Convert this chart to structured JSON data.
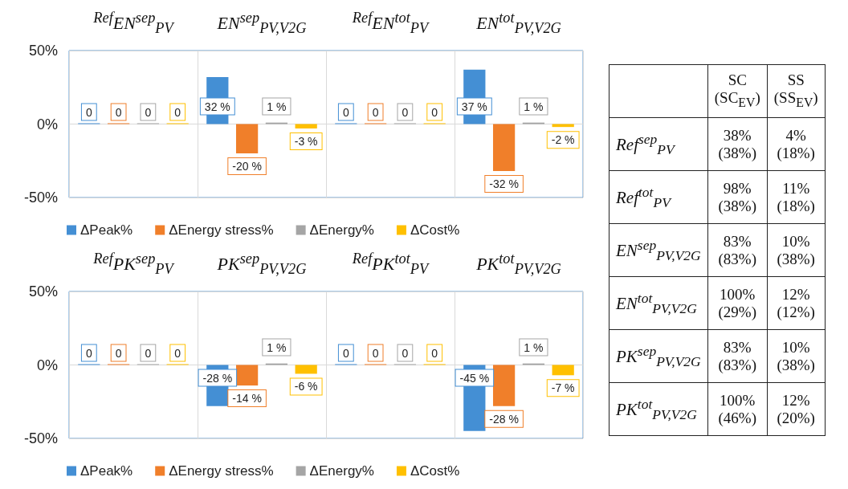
{
  "chart_data": [
    {
      "type": "bar",
      "categories": [
        "$^{Ref}$EN$^{sep}$$_{PV}$",
        "EN$^{sep}$$_{PV,V2G}$",
        "$^{Ref}$EN$^{tot}$$_{PV}$",
        "EN$^{tot}$$_{PV,V2G}$"
      ],
      "series": [
        {
          "name": "ΔPeak%",
          "color": "#448fd4",
          "values": [
            0,
            32,
            0,
            37
          ],
          "value_labels": [
            "0",
            "32 %",
            "0",
            "37 %"
          ]
        },
        {
          "name": "ΔEnergy stress%",
          "color": "#f07f2a",
          "values": [
            0,
            -20,
            0,
            -32
          ],
          "value_labels": [
            "0",
            "-20 %",
            "0",
            "-32 %"
          ]
        },
        {
          "name": "ΔEnergy%",
          "color": "#a5a5a5",
          "values": [
            0,
            1,
            0,
            1
          ],
          "value_labels": [
            "0",
            "1 %",
            "0",
            "1 %"
          ]
        },
        {
          "name": "ΔCost%",
          "color": "#ffc000",
          "values": [
            0,
            -3,
            0,
            -2
          ],
          "value_labels": [
            "0",
            "-3 %",
            "0",
            "-2 %"
          ]
        }
      ],
      "ylim": [
        -50,
        50
      ],
      "yticks": [
        {
          "value": -50,
          "label": "-50%"
        },
        {
          "value": 0,
          "label": "0%"
        },
        {
          "value": 50,
          "label": "50%"
        }
      ],
      "grid": true,
      "legend": "bottom"
    },
    {
      "type": "bar",
      "categories": [
        "$^{Ref}$PK$^{sep}$$_{PV}$",
        "PK$^{sep}$$_{PV,V2G}$",
        "$^{Ref}$PK$^{tot}$$_{PV}$",
        "PK$^{tot}$$_{PV,V2G}$"
      ],
      "series": [
        {
          "name": "ΔPeak%",
          "color": "#448fd4",
          "values": [
            0,
            -28,
            0,
            -45
          ],
          "value_labels": [
            "0",
            "-28 %",
            "0",
            "-45 %"
          ]
        },
        {
          "name": "ΔEnergy stress%",
          "color": "#f07f2a",
          "values": [
            0,
            -14,
            0,
            -28
          ],
          "value_labels": [
            "0",
            "-14 %",
            "0",
            "-28 %"
          ]
        },
        {
          "name": "ΔEnergy%",
          "color": "#a5a5a5",
          "values": [
            0,
            1,
            0,
            1
          ],
          "value_labels": [
            "0",
            "1 %",
            "0",
            "1 %"
          ]
        },
        {
          "name": "ΔCost%",
          "color": "#ffc000",
          "values": [
            0,
            -6,
            0,
            -7
          ],
          "value_labels": [
            "0",
            "-6 %",
            "0",
            "-7 %"
          ]
        }
      ],
      "ylim": [
        -50,
        50
      ],
      "yticks": [
        {
          "value": -50,
          "label": "-50%"
        },
        {
          "value": 0,
          "label": "0%"
        },
        {
          "value": 50,
          "label": "50%"
        }
      ],
      "grid": true,
      "legend": "bottom"
    },
    {
      "type": "other",
      "categories": [
        "SC\n(SC$_{EV}$)",
        "SS\n(SS$_{EV}$)"
      ],
      "y_categories": [
        "Ref$^{sep}$$_{PV}$",
        "Ref$^{tot}$$_{PV}$",
        "EN$^{sep}$$_{PV,V2G}$",
        "EN$^{tot}$$_{PV,V2G}$",
        "PK$^{sep}$$_{PV,V2G}$",
        "PK$^{tot}$$_{PV,V2G}$"
      ],
      "cell_labels": [
        [
          "38%\n(38%)",
          "4%\n(18%)"
        ],
        [
          "98%\n(38%)",
          "11%\n(18%)"
        ],
        [
          "83%\n(83%)",
          "10%\n(38%)"
        ],
        [
          "100%\n(29%)",
          "12%\n(12%)"
        ],
        [
          "83%\n(83%)",
          "10%\n(38%)"
        ],
        [
          "100%\n(46%)",
          "12%\n(20%)"
        ]
      ]
    }
  ]
}
